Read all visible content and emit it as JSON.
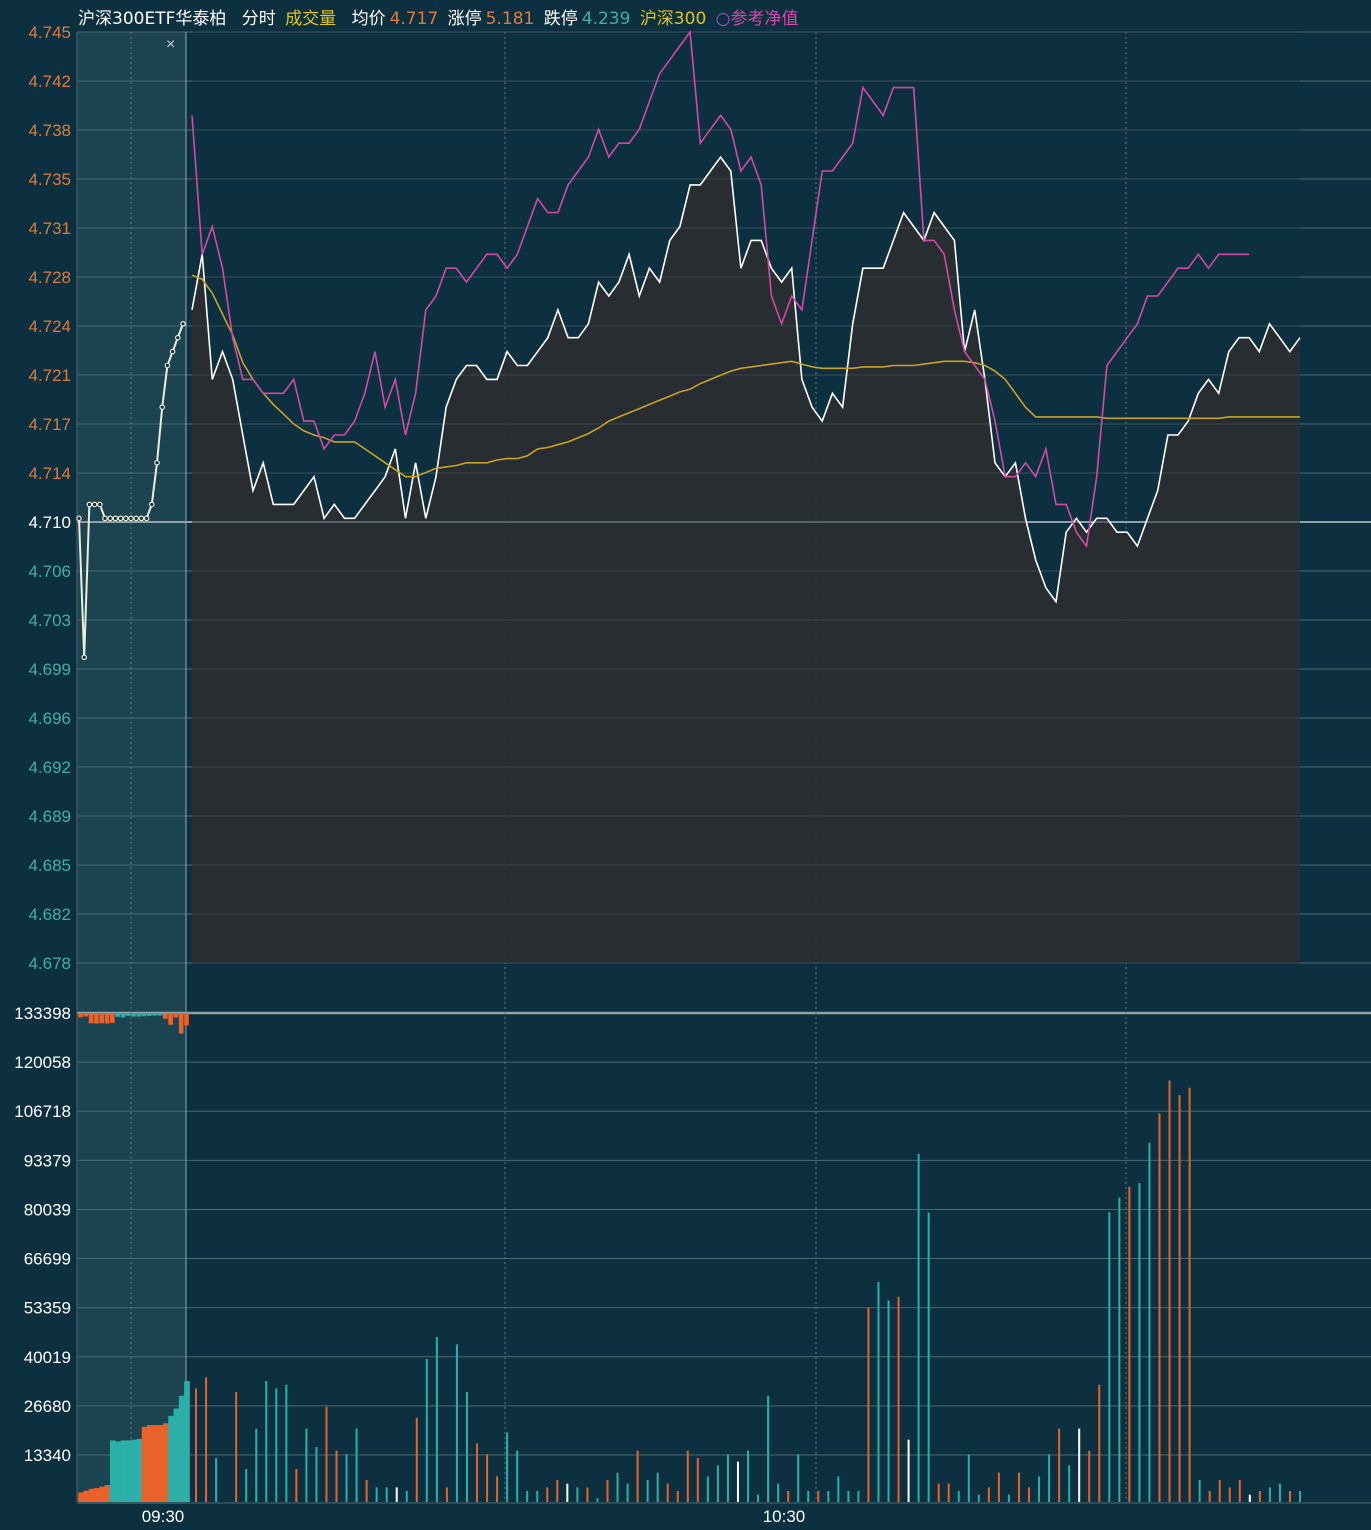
{
  "legend": {
    "name": "沪深300ETF华泰柏",
    "period": "分时",
    "volume_label": "成交量",
    "avg_label": "均价",
    "avg_value": "4.717",
    "limit_up_label": "涨停",
    "limit_up_value": "5.181",
    "limit_down_label": "跌停",
    "limit_down_value": "4.239",
    "index_label": "沪深300",
    "nav_marker": "○",
    "nav_label": "参考净值"
  },
  "close_label": "×",
  "colors": {
    "background": "#0d3040",
    "price": "#ffffff",
    "avg": "#c9a227",
    "nav": "#d04aa7",
    "up": "#e8622a",
    "down": "#2ab0a8",
    "price_tick_up": "#e07a3a",
    "price_tick_down": "#3fb0a0",
    "volume_tick": "#ffffff"
  },
  "chart_data": {
    "type": "line",
    "price_axis": {
      "ticks": [
        "4.745",
        "4.742",
        "4.738",
        "4.735",
        "4.731",
        "4.728",
        "4.724",
        "4.721",
        "4.717",
        "4.714",
        "4.710",
        "4.706",
        "4.703",
        "4.699",
        "4.696",
        "4.692",
        "4.689",
        "4.685",
        "4.682",
        "4.678"
      ],
      "range": [
        4.6765,
        4.745
      ],
      "prev_close": 4.71
    },
    "volume_axis": {
      "ticks": [
        "133398",
        "120058",
        "106718",
        "93379",
        "80039",
        "66699",
        "53359",
        "40019",
        "26680",
        "13340"
      ],
      "range": [
        0,
        133398
      ]
    },
    "x_labels": [
      "09:30",
      "10:30"
    ],
    "pre_market": {
      "price": [
        4.71,
        4.7,
        4.711,
        4.711,
        4.711,
        4.71,
        4.71,
        4.71,
        4.71,
        4.71,
        4.71,
        4.71,
        4.71,
        4.71,
        4.711,
        4.714,
        4.718,
        4.721,
        4.722,
        4.723,
        4.724
      ],
      "volume": [
        2600,
        3100,
        3600,
        3800,
        4200,
        4600,
        16800,
        16500,
        16800,
        16800,
        17000,
        17200,
        20500,
        21000,
        21000,
        21000,
        21500,
        23500,
        25500,
        29000,
        33000
      ],
      "imbalance": [
        -1500,
        -1200,
        -3500,
        -3600,
        -3500,
        -3600,
        -3400,
        1300,
        1500,
        1000,
        1200,
        1200,
        1100,
        1000,
        900,
        900,
        -2000,
        -4000,
        -1500,
        -7000,
        -4200
      ]
    },
    "series": [
      {
        "name": "沪深300ETF华泰柏",
        "values": [
          4.725,
          4.729,
          4.72,
          4.722,
          4.72,
          4.716,
          4.712,
          4.714,
          4.711,
          4.711,
          4.711,
          4.712,
          4.713,
          4.71,
          4.711,
          4.71,
          4.71,
          4.711,
          4.712,
          4.713,
          4.715,
          4.71,
          4.714,
          4.71,
          4.713,
          4.718,
          4.72,
          4.721,
          4.721,
          4.72,
          4.72,
          4.722,
          4.721,
          4.721,
          4.722,
          4.723,
          4.725,
          4.723,
          4.723,
          4.724,
          4.727,
          4.726,
          4.727,
          4.729,
          4.726,
          4.728,
          4.727,
          4.73,
          4.731,
          4.734,
          4.734,
          4.735,
          4.736,
          4.735,
          4.728,
          4.73,
          4.73,
          4.728,
          4.727,
          4.728,
          4.72,
          4.718,
          4.717,
          4.719,
          4.718,
          4.724,
          4.728,
          4.728,
          4.728,
          4.73,
          4.732,
          4.731,
          4.73,
          4.732,
          4.731,
          4.73,
          4.722,
          4.725,
          4.72,
          4.714,
          4.713,
          4.714,
          4.71,
          4.707,
          4.705,
          4.704,
          4.709,
          4.71,
          4.709,
          4.71,
          4.71,
          4.709,
          4.709,
          4.708,
          4.71,
          4.712,
          4.716,
          4.716,
          4.717,
          4.719,
          4.72,
          4.719,
          4.722,
          4.723,
          4.723,
          4.722,
          4.724,
          4.723,
          4.722,
          4.723
        ]
      },
      {
        "name": "均价",
        "values": [
          4.7275,
          4.7272,
          4.7262,
          4.7247,
          4.7232,
          4.7212,
          4.72,
          4.719,
          4.7182,
          4.7175,
          4.7168,
          4.7163,
          4.716,
          4.7158,
          4.7155,
          4.7155,
          4.7155,
          4.715,
          4.7145,
          4.714,
          4.7135,
          4.713,
          4.713,
          4.7133,
          4.7136,
          4.7137,
          4.7138,
          4.714,
          4.714,
          4.714,
          4.7142,
          4.7143,
          4.7143,
          4.7145,
          4.715,
          4.7151,
          4.7153,
          4.7155,
          4.7158,
          4.7161,
          4.7165,
          4.717,
          4.7173,
          4.7176,
          4.7179,
          4.7182,
          4.7185,
          4.7188,
          4.7191,
          4.7193,
          4.7197,
          4.72,
          4.7203,
          4.7206,
          4.7208,
          4.7209,
          4.721,
          4.7211,
          4.7212,
          4.7213,
          4.7211,
          4.7209,
          4.7208,
          4.7208,
          4.7208,
          4.7208,
          4.7209,
          4.7209,
          4.7209,
          4.721,
          4.721,
          4.721,
          4.7211,
          4.7212,
          4.7213,
          4.7213,
          4.7213,
          4.7212,
          4.721,
          4.7206,
          4.72,
          4.719,
          4.718,
          4.7173,
          4.7173,
          4.7173,
          4.7173,
          4.7173,
          4.7173,
          4.7173,
          4.7172,
          4.7172,
          4.7172,
          4.7172,
          4.7172,
          4.7172,
          4.7172,
          4.7172,
          4.7172,
          4.7172,
          4.7172,
          4.7172,
          4.7173,
          4.7173,
          4.7173,
          4.7173,
          4.7173,
          4.7173,
          4.7173,
          4.7173
        ]
      },
      {
        "name": "参考净值",
        "values": [
          4.739,
          4.729,
          4.731,
          4.728,
          4.723,
          4.72,
          4.72,
          4.719,
          4.719,
          4.719,
          4.72,
          4.717,
          4.717,
          4.715,
          4.716,
          4.716,
          4.717,
          4.719,
          4.722,
          4.718,
          4.72,
          4.716,
          4.719,
          4.725,
          4.726,
          4.728,
          4.728,
          4.727,
          4.728,
          4.729,
          4.729,
          4.728,
          4.729,
          4.731,
          4.733,
          4.732,
          4.732,
          4.734,
          4.735,
          4.736,
          4.738,
          4.736,
          4.737,
          4.737,
          4.738,
          4.74,
          4.742,
          4.743,
          4.744,
          4.745,
          4.737,
          4.738,
          4.739,
          4.738,
          4.735,
          4.736,
          4.734,
          4.726,
          4.724,
          4.726,
          4.725,
          4.73,
          4.735,
          4.735,
          4.736,
          4.737,
          4.741,
          4.74,
          4.739,
          4.741,
          4.741,
          4.741,
          4.73,
          4.73,
          4.729,
          4.725,
          4.722,
          4.721,
          4.72,
          4.717,
          4.713,
          4.713,
          4.714,
          4.713,
          4.715,
          4.711,
          4.711,
          4.709,
          4.708,
          4.713,
          4.721,
          4.722,
          4.723,
          4.724,
          4.726,
          4.726,
          4.727,
          4.728,
          4.728,
          4.729,
          4.728,
          4.729,
          4.729,
          4.729,
          4.729
        ]
      }
    ],
    "volume": {
      "values": [
        31000,
        34000,
        12000,
        0,
        30000,
        9000,
        20000,
        33000,
        31000,
        32000,
        9000,
        20000,
        15000,
        26000,
        14000,
        13000,
        20000,
        6000,
        4000,
        4000,
        4000,
        3000,
        23000,
        39000,
        45000,
        4000,
        43000,
        30000,
        16000,
        13000,
        7000,
        19000,
        14000,
        3000,
        3000,
        4000,
        6000,
        5000,
        4000,
        4000,
        1000,
        6000,
        8000,
        5000,
        14000,
        6000,
        8000,
        5000,
        3000,
        14000,
        12000,
        7000,
        10000,
        13000,
        11000,
        14000,
        2000,
        29000,
        5000,
        3000,
        13000,
        3000,
        3000,
        3000,
        7000,
        3000,
        3000,
        53000,
        60000,
        55000,
        56000,
        17000,
        95000,
        79000,
        5000,
        5000,
        3000,
        13000,
        2000,
        4000,
        8000,
        2000,
        8000,
        4000,
        7000,
        13000,
        20000,
        10000,
        20000,
        14000,
        32000,
        79000,
        83000,
        86000,
        87000,
        98000,
        106000,
        115000,
        111000,
        113000,
        6000,
        3000,
        6000,
        4000,
        6000,
        2000,
        3000,
        4000,
        5000,
        3000,
        3000
      ],
      "direction": [
        "up",
        "up",
        "down",
        "down",
        "up",
        "down",
        "down",
        "down",
        "down",
        "down",
        "up",
        "down",
        "down",
        "up",
        "up",
        "down",
        "down",
        "up",
        "down",
        "down",
        "down",
        "down",
        "up",
        "down",
        "down",
        "up",
        "down",
        "down",
        "up",
        "up",
        "up",
        "down",
        "down",
        "down",
        "down",
        "up",
        "up",
        "down",
        "down",
        "up",
        "down",
        "up",
        "down",
        "down",
        "up",
        "down",
        "down",
        "up",
        "up",
        "up",
        "up",
        "down",
        "down",
        "down",
        "down",
        "down",
        "down",
        "down",
        "down",
        "up",
        "down",
        "down",
        "up",
        "down",
        "down",
        "down",
        "down",
        "up",
        "down",
        "down",
        "up",
        "down",
        "down",
        "down",
        "up",
        "up",
        "down",
        "down",
        "down",
        "up",
        "up",
        "down",
        "up",
        "up",
        "down",
        "down",
        "up",
        "down",
        "down",
        "up",
        "up",
        "down",
        "down",
        "up",
        "down",
        "down",
        "up",
        "up",
        "up",
        "up",
        "down",
        "up",
        "up",
        "up",
        "up",
        "up",
        "up",
        "down",
        "down",
        "up"
      ]
    }
  }
}
